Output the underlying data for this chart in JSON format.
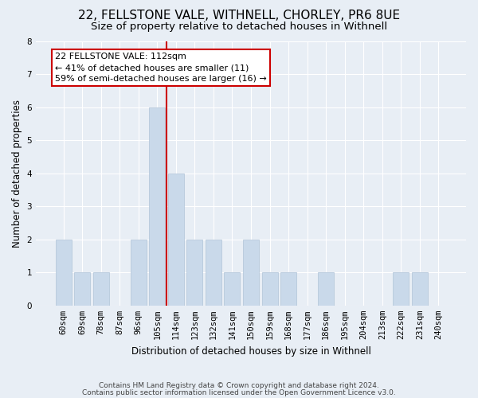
{
  "title1": "22, FELLSTONE VALE, WITHNELL, CHORLEY, PR6 8UE",
  "title2": "Size of property relative to detached houses in Withnell",
  "xlabel": "Distribution of detached houses by size in Withnell",
  "ylabel": "Number of detached properties",
  "categories": [
    "60sqm",
    "69sqm",
    "78sqm",
    "87sqm",
    "96sqm",
    "105sqm",
    "114sqm",
    "123sqm",
    "132sqm",
    "141sqm",
    "150sqm",
    "159sqm",
    "168sqm",
    "177sqm",
    "186sqm",
    "195sqm",
    "204sqm",
    "213sqm",
    "222sqm",
    "231sqm",
    "240sqm"
  ],
  "values": [
    2,
    1,
    1,
    0,
    2,
    6,
    4,
    2,
    2,
    1,
    2,
    1,
    1,
    0,
    1,
    0,
    0,
    0,
    1,
    1,
    0
  ],
  "bar_color": "#c9d9ea",
  "bar_edge_color": "#b0c4d8",
  "vline_x": 5.5,
  "vline_color": "#cc0000",
  "annotation_line1": "22 FELLSTONE VALE: 112sqm",
  "annotation_line2": "← 41% of detached houses are smaller (11)",
  "annotation_line3": "59% of semi-detached houses are larger (16) →",
  "annotation_box_color": "white",
  "annotation_box_edge": "#cc0000",
  "ylim": [
    0,
    8
  ],
  "yticks": [
    0,
    1,
    2,
    3,
    4,
    5,
    6,
    7,
    8
  ],
  "footer1": "Contains HM Land Registry data © Crown copyright and database right 2024.",
  "footer2": "Contains public sector information licensed under the Open Government Licence v3.0.",
  "background_color": "#e8eef5",
  "plot_bg_color": "#e8eef5",
  "title1_fontsize": 11,
  "title2_fontsize": 9.5,
  "axis_label_fontsize": 8.5,
  "tick_fontsize": 7.5,
  "annot_fontsize": 8,
  "footer_fontsize": 6.5
}
